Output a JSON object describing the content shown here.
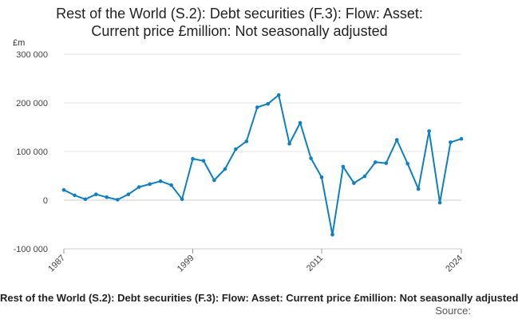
{
  "chart_data": {
    "type": "line",
    "title_lines": [
      "Rest of the World (S.2): Debt securities (F.3): Flow: Asset:",
      "Current price £million: Not seasonally adjusted"
    ],
    "unit_label": "£m",
    "ylim": [
      -100000,
      300000
    ],
    "y_ticks": [
      -100000,
      0,
      100000,
      200000,
      300000
    ],
    "y_tick_labels": [
      "-100 000",
      "0",
      "100 000",
      "200 000",
      "300 000"
    ],
    "x_range": [
      1987,
      2024
    ],
    "x_ticks": [
      1987,
      1999,
      2011,
      2024
    ],
    "x_tick_labels": [
      "1987",
      "1999",
      "2011",
      "2024"
    ],
    "grid": true,
    "series": [
      {
        "color": "#0f7fc0",
        "points": [
          [
            1987,
            21000
          ],
          [
            1988,
            10000
          ],
          [
            1989,
            2000
          ],
          [
            1990,
            12000
          ],
          [
            1991,
            6000
          ],
          [
            1992,
            1000
          ],
          [
            1993,
            12000
          ],
          [
            1994,
            27000
          ],
          [
            1995,
            33000
          ],
          [
            1996,
            39000
          ],
          [
            1997,
            31000
          ],
          [
            1998,
            2000
          ],
          [
            1999,
            85000
          ],
          [
            2000,
            81000
          ],
          [
            2001,
            41000
          ],
          [
            2002,
            64000
          ],
          [
            2003,
            105000
          ],
          [
            2004,
            121000
          ],
          [
            2005,
            191000
          ],
          [
            2006,
            198000
          ],
          [
            2007,
            216000
          ],
          [
            2008,
            116000
          ],
          [
            2009,
            159000
          ],
          [
            2010,
            86000
          ],
          [
            2011,
            47000
          ],
          [
            2012,
            -71000
          ],
          [
            2013,
            69000
          ],
          [
            2014,
            35000
          ],
          [
            2015,
            49000
          ],
          [
            2016,
            78000
          ],
          [
            2017,
            76000
          ],
          [
            2018,
            124000
          ],
          [
            2019,
            75000
          ],
          [
            2020,
            23000
          ],
          [
            2021,
            142000
          ],
          [
            2022,
            -5000
          ],
          [
            2023,
            119000
          ],
          [
            2024,
            126000
          ]
        ]
      }
    ],
    "footer_title": "Rest of the World (S.2): Debt securities (F.3): Flow: Asset: Current price £million: Not seasonally adjusted",
    "source_label": "Source:"
  }
}
